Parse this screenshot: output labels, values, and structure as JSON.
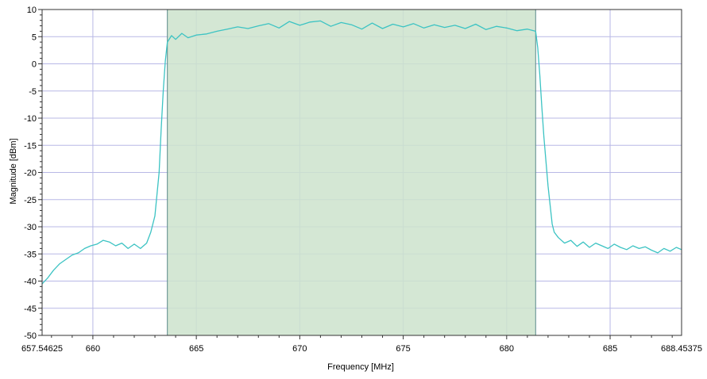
{
  "chart_data": {
    "type": "line",
    "title": "",
    "xlabel": "Frequency [MHz]",
    "ylabel": "Magnitude [dBm]",
    "xlim": [
      657.54625,
      688.45375
    ],
    "ylim": [
      -50,
      10
    ],
    "x_ticks": [
      657.54625,
      660,
      665,
      670,
      675,
      680,
      685,
      688.45375
    ],
    "x_tick_labels": [
      "657.54625",
      "660",
      "665",
      "670",
      "675",
      "680",
      "685",
      "688.45375"
    ],
    "y_ticks": [
      10,
      5,
      0,
      -5,
      -10,
      -15,
      -20,
      -25,
      -30,
      -35,
      -40,
      -45,
      -50
    ],
    "y_tick_labels": [
      "10",
      "5",
      "0",
      "-5",
      "-10",
      "-15",
      "-20",
      "-25",
      "-30",
      "-35",
      "-40",
      "-45",
      "-50"
    ],
    "grid": true,
    "legend": "none",
    "highlight_band": {
      "x_start": 663.6,
      "x_end": 681.4,
      "color": "#cce3cc",
      "edge_color": "#5a8a8a"
    },
    "series": [
      {
        "color": "#3cc3c3",
        "x": [
          657.55,
          657.8,
          658.1,
          658.4,
          658.7,
          659.0,
          659.3,
          659.6,
          659.9,
          660.2,
          660.5,
          660.8,
          661.1,
          661.4,
          661.7,
          662.0,
          662.3,
          662.6,
          662.8,
          663.0,
          663.2,
          663.3,
          663.4,
          663.5,
          663.6,
          663.8,
          664.0,
          664.3,
          664.6,
          665.0,
          665.5,
          666.0,
          666.5,
          667.0,
          667.5,
          668.0,
          668.5,
          669.0,
          669.5,
          670.0,
          670.5,
          671.0,
          671.5,
          672.0,
          672.5,
          673.0,
          673.5,
          674.0,
          674.5,
          675.0,
          675.5,
          676.0,
          676.5,
          677.0,
          677.5,
          678.0,
          678.5,
          679.0,
          679.5,
          680.0,
          680.5,
          681.0,
          681.3,
          681.4,
          681.5,
          681.6,
          681.7,
          681.8,
          681.9,
          682.0,
          682.1,
          682.2,
          682.3,
          682.5,
          682.8,
          683.1,
          683.4,
          683.7,
          684.0,
          684.3,
          684.6,
          684.9,
          685.2,
          685.5,
          685.8,
          686.1,
          686.4,
          686.7,
          687.0,
          687.3,
          687.6,
          687.9,
          688.2,
          688.45
        ],
        "y": [
          -40.5,
          -39.5,
          -38.0,
          -36.8,
          -36.0,
          -35.2,
          -34.8,
          -34.0,
          -33.5,
          -33.2,
          -32.5,
          -32.8,
          -33.5,
          -33.0,
          -34.0,
          -33.2,
          -34.0,
          -33.0,
          -31.0,
          -28.0,
          -20.0,
          -12.0,
          -5.0,
          0.5,
          4.0,
          5.2,
          4.5,
          5.6,
          4.8,
          5.3,
          5.5,
          6.0,
          6.4,
          6.8,
          6.5,
          7.0,
          7.4,
          6.6,
          7.8,
          7.1,
          7.7,
          7.9,
          6.9,
          7.6,
          7.2,
          6.4,
          7.5,
          6.5,
          7.3,
          6.8,
          7.4,
          6.6,
          7.2,
          6.7,
          7.1,
          6.5,
          7.3,
          6.3,
          6.9,
          6.6,
          6.1,
          6.4,
          6.1,
          6.0,
          3.0,
          -2.0,
          -8.0,
          -13.5,
          -18.0,
          -22.5,
          -26.0,
          -29.5,
          -31.0,
          -32.0,
          -33.0,
          -32.5,
          -33.6,
          -32.8,
          -33.8,
          -33.0,
          -33.5,
          -34.0,
          -33.2,
          -33.8,
          -34.2,
          -33.5,
          -34.0,
          -33.7,
          -34.3,
          -34.8,
          -34.0,
          -34.5,
          -33.8,
          -34.2
        ]
      }
    ]
  }
}
